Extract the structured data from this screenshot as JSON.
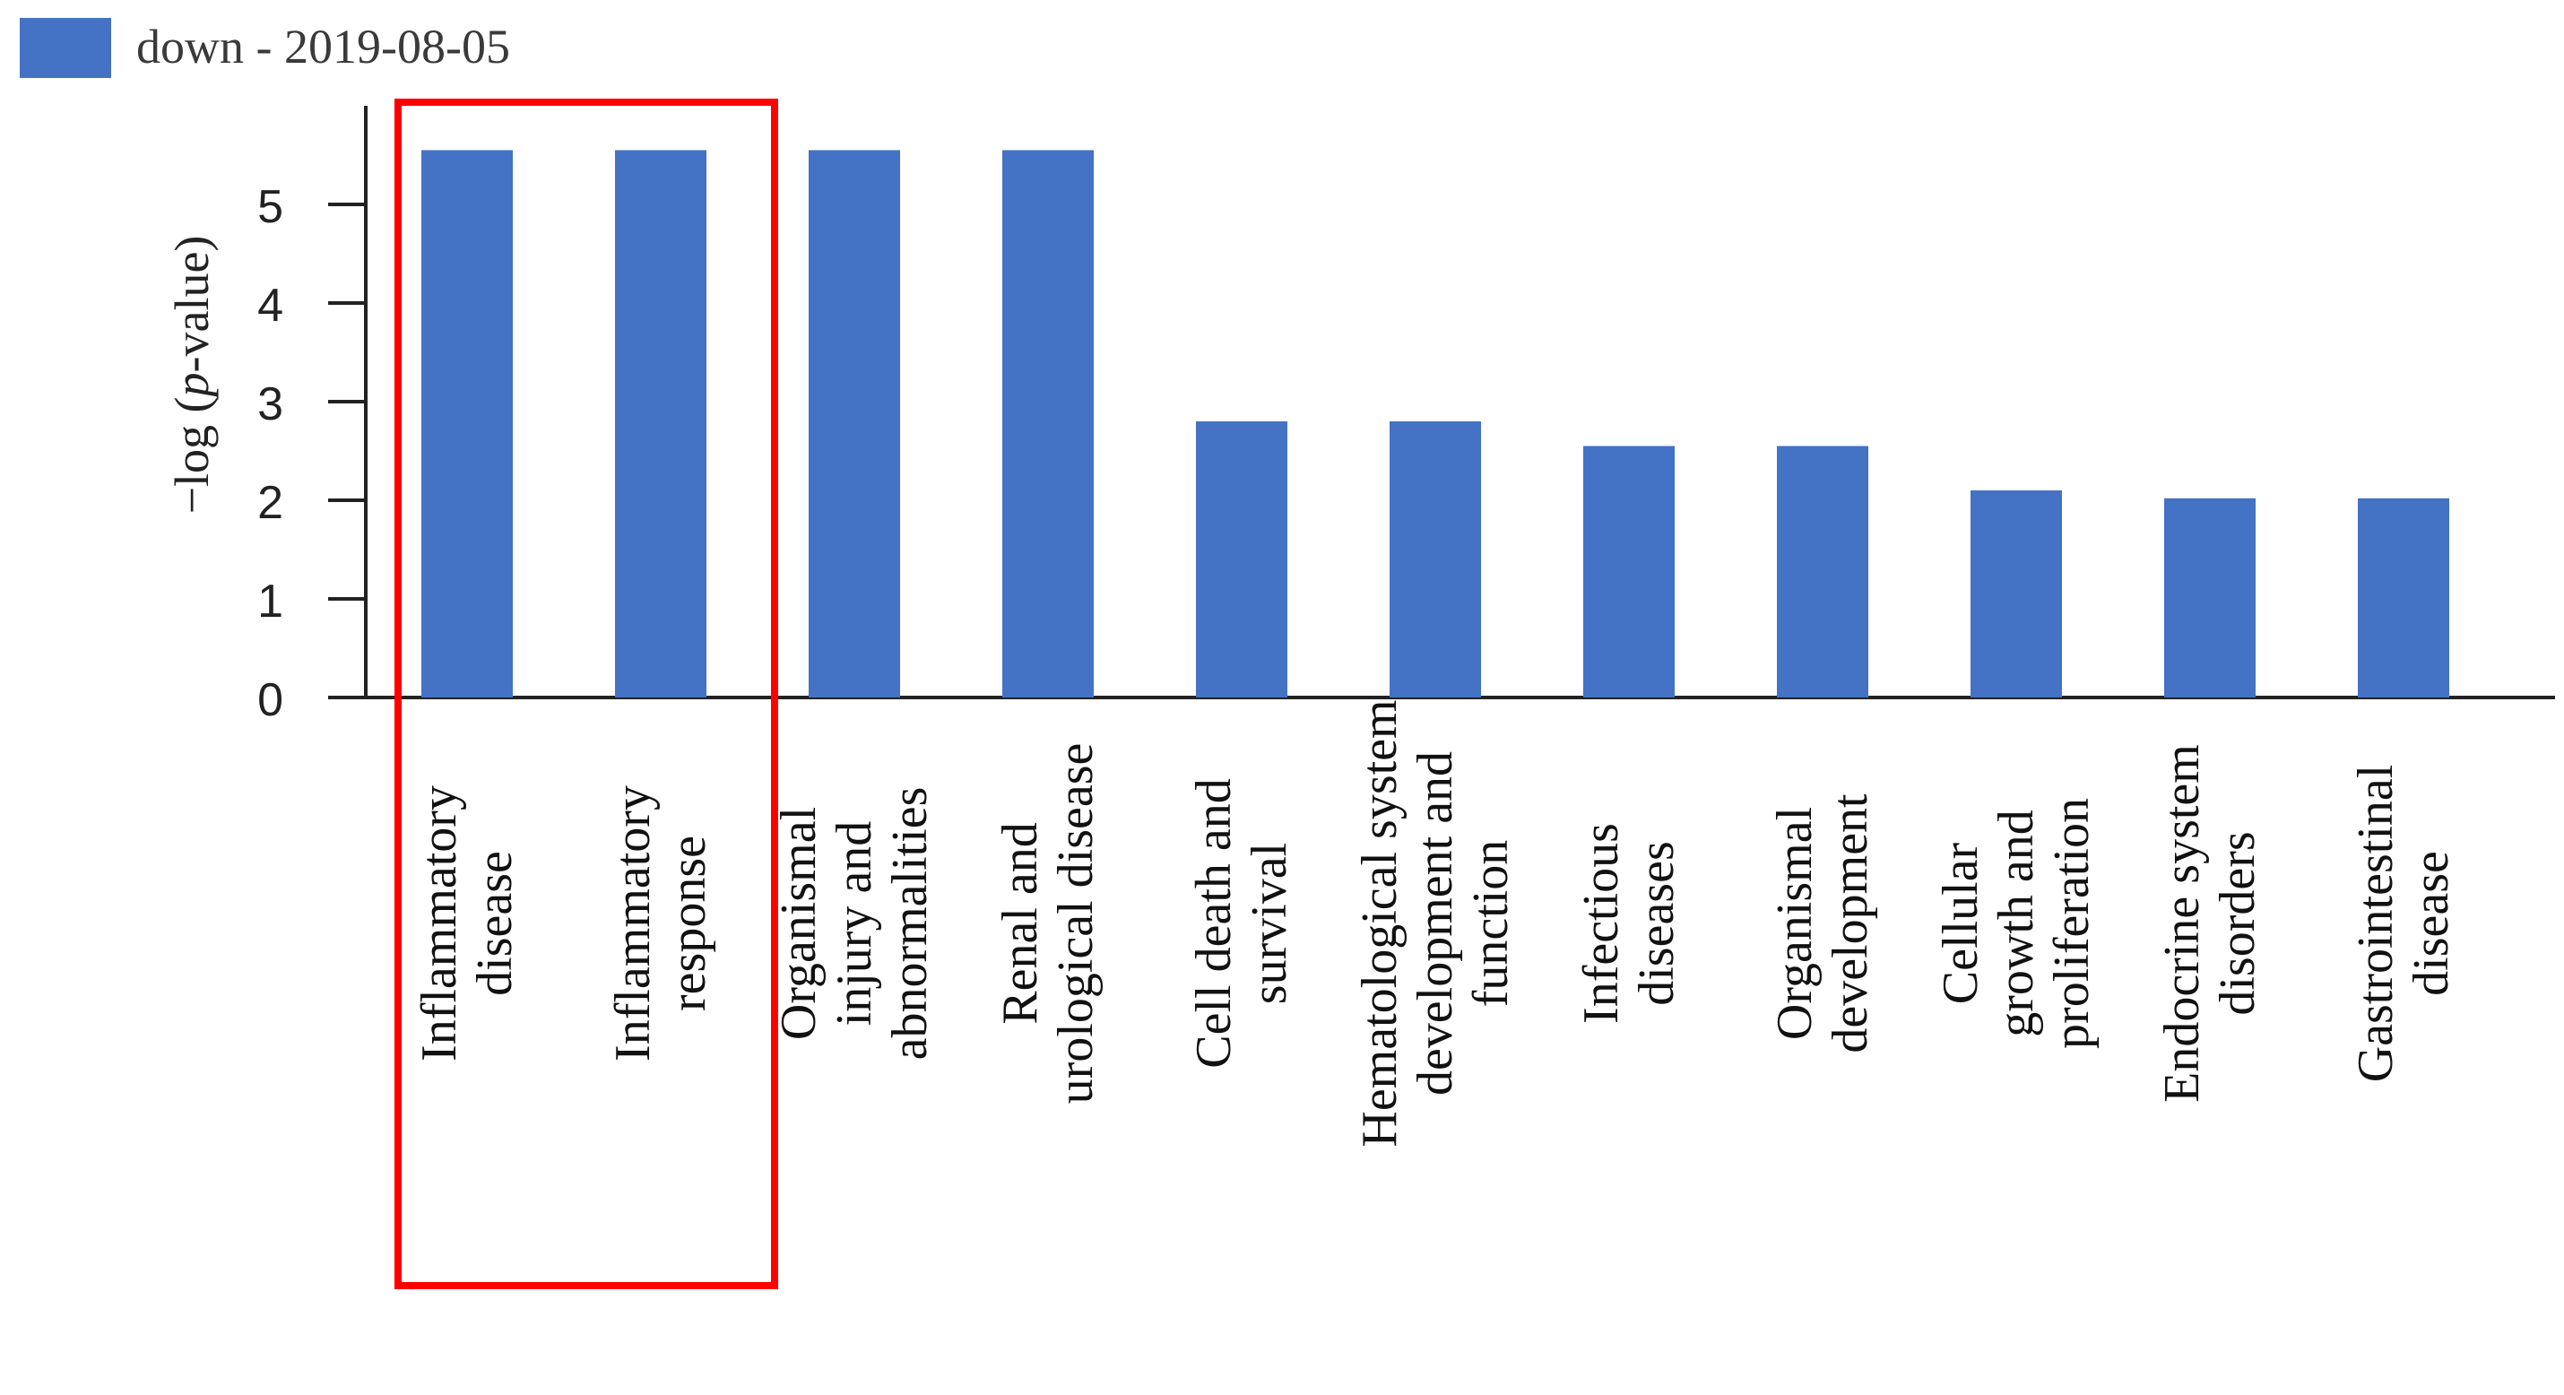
{
  "chart_data": {
    "type": "bar",
    "title": "",
    "ylabel_prefix": "−log (",
    "ylabel_italic": "p",
    "ylabel_suffix": "-value)",
    "xlabel": "",
    "ylim": [
      0,
      6
    ],
    "yticks": [
      0,
      1,
      2,
      3,
      4,
      5
    ],
    "grid": false,
    "legend_position": "top-left",
    "bar_color": "#4472C4",
    "highlight_color": "#FF0000",
    "categories": [
      [
        "Inflammatory",
        "disease"
      ],
      [
        "Inflammatory",
        "response"
      ],
      [
        "Organismal",
        "injury and",
        "abnormalities"
      ],
      [
        "Renal and",
        "urological disease"
      ],
      [
        "Cell death and",
        "survival"
      ],
      [
        "Hematological system",
        "development and",
        "function"
      ],
      [
        "Infectious",
        "diseases"
      ],
      [
        "Organismal",
        "development"
      ],
      [
        "Cellular",
        "growth and",
        "proliferation"
      ],
      [
        "Endocrine system",
        "disorders"
      ],
      [
        "Gastrointestinal",
        "disease"
      ]
    ],
    "series": [
      {
        "name": "down - 2019-08-05",
        "values": [
          5.55,
          5.55,
          5.55,
          5.55,
          2.8,
          2.8,
          2.55,
          2.55,
          2.1,
          2.02,
          2.02
        ]
      }
    ],
    "highlighted_categories": [
      0,
      1
    ]
  }
}
